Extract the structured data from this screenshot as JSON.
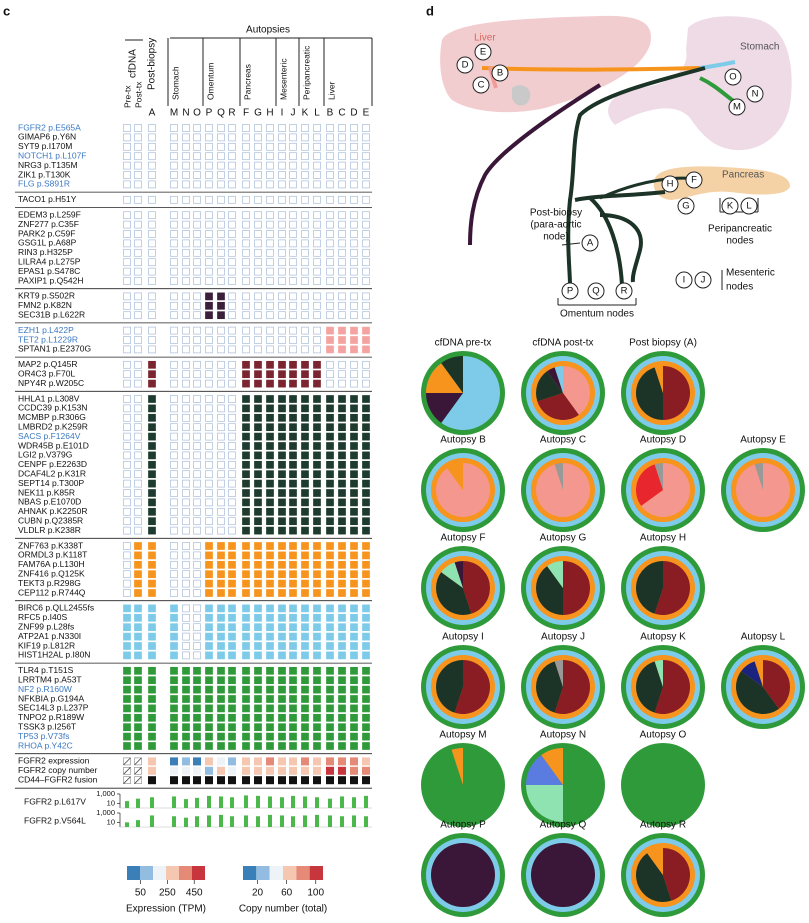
{
  "panel_c": {
    "label": "c",
    "headers": {
      "cfdna": "cfDNA",
      "post_biopsy": "Post-biopsy",
      "autopsies": "Autopsies"
    },
    "columns": [
      "Pre-tx",
      "Post-tx",
      "A",
      "M",
      "N",
      "O",
      "P",
      "Q",
      "R",
      "F",
      "G",
      "H",
      "I",
      "J",
      "K",
      "L",
      "B",
      "C",
      "D",
      "E"
    ],
    "sites": [
      {
        "name": "Stomach",
        "columns": [
          "M",
          "N",
          "O"
        ]
      },
      {
        "name": "Omentum",
        "columns": [
          "P",
          "Q",
          "R"
        ]
      },
      {
        "name": "Pancreas",
        "columns": [
          "F",
          "G",
          "H"
        ]
      },
      {
        "name": "Mesenteric",
        "columns": [
          "I",
          "J"
        ]
      },
      {
        "name": "Peripancreatic",
        "columns": [
          "K",
          "L"
        ]
      },
      {
        "name": "Liver",
        "columns": [
          "B",
          "C",
          "D",
          "E"
        ]
      }
    ],
    "highlight_color": "#3a78c2",
    "blocks": [
      {
        "genes": [
          "FGFR2 p.E565A",
          "GIMAP6 p.Y6N",
          "SYT9 p.I170M",
          "NOTCH1 p.L107F",
          "NRG3 p.T135M",
          "ZIK1 p.T130K",
          "FLG p.S891R"
        ],
        "highlighted": [
          0,
          3,
          6
        ],
        "color": null,
        "filled": []
      },
      {
        "genes": [
          "TACO1 p.H51Y"
        ],
        "highlighted": [],
        "color": null,
        "filled": []
      },
      {
        "genes": [
          "EDEM3 p.L259F",
          "ZNF277 p.C35F",
          "PARK2 p.C59F",
          "GSG1L p.A68P",
          "RIN3 p.H325P",
          "LILRA4 p.L275P",
          "EPAS1 p.S478C",
          "PAXIP1 p.Q542H"
        ],
        "highlighted": [],
        "color": null,
        "filled": []
      },
      {
        "genes": [
          "KRT9 p.S502R",
          "FMN2 p.K82N",
          "SEC31B p.L622R"
        ],
        "highlighted": [],
        "color": "#3b1f3b",
        "filled": [
          "P",
          "Q"
        ]
      },
      {
        "genes": [
          "EZH1 p.L422P",
          "TET2 p.L1229R",
          "SPTAN1 p.E2370G"
        ],
        "highlighted": [
          0,
          1
        ],
        "color": "#f4a3a0",
        "filled": [
          "B",
          "C",
          "D",
          "E"
        ]
      },
      {
        "genes": [
          "MAP2 p.Q145R",
          "OR4C3 p.F70L",
          "NPY4R p.W205C"
        ],
        "highlighted": [],
        "color": "#7a2530",
        "filled": [
          "A",
          "F",
          "G",
          "H",
          "I",
          "J",
          "K",
          "L"
        ]
      },
      {
        "genes": [
          "HHLA1 p.L308V",
          "CCDC39 p.K153N",
          "MCMBP p.R306G",
          "LMBRD2 p.K259R",
          "SACS p.F1264V",
          "WDR45B p.E101D",
          "LGI2 p.V379G",
          "CENPF p.E2263D",
          "DCAF4L2 p.K31R",
          "SEPT14 p.T300P",
          "NEK11 p.K85R",
          "NBAS p.E1070D",
          "AHNAK p.K2250R",
          "CUBN p.Q2385R",
          "VLDLR p.K238R"
        ],
        "highlighted": [
          4
        ],
        "color": "#1e3b2f",
        "filled": [
          "A",
          "F",
          "G",
          "H",
          "I",
          "J",
          "K",
          "L",
          "B",
          "C",
          "D",
          "E"
        ]
      },
      {
        "genes": [
          "ZNF763 p.K338T",
          "ORMDL3 p.K118T",
          "FAM76A p.L130H",
          "ZNF416 p.Q125K",
          "TEKT3 p.R298G",
          "CEP112 p.R744Q"
        ],
        "highlighted": [],
        "color": "#f7941d",
        "filled": [
          "Post-tx",
          "A",
          "P",
          "Q",
          "R",
          "F",
          "G",
          "H",
          "I",
          "J",
          "K",
          "L",
          "B",
          "C",
          "D",
          "E"
        ]
      },
      {
        "genes": [
          "BIRC6 p.QLL2455fs",
          "RFC5 p.I40S",
          "ZNF99 p.L28fs",
          "ATP2A1 p.N330I",
          "KIF19 p.L812R",
          "HIST1H2AL p.I80N"
        ],
        "highlighted": [],
        "color": "#7dcbe9",
        "filled": [
          "Pre-tx",
          "Post-tx",
          "A",
          "M",
          "P",
          "Q",
          "R",
          "F",
          "G",
          "H",
          "I",
          "J",
          "K",
          "L",
          "B",
          "C",
          "D",
          "E"
        ]
      },
      {
        "genes": [
          "TLR4 p.T151S",
          "LRRTM4 p.A53T",
          "NF2 p.R160W",
          "NFKBIA p.G194A",
          "SEC14L3 p.L237P",
          "TNPO2 p.R189W",
          "TSSK3 p.I256T",
          "TP53 p.V73fs",
          "RHOA p.Y42C"
        ],
        "highlighted": [
          2,
          7,
          8
        ],
        "color": "#2f9a3a",
        "filled": [
          "Pre-tx",
          "Post-tx",
          "A",
          "M",
          "N",
          "O",
          "P",
          "Q",
          "R",
          "F",
          "G",
          "H",
          "I",
          "J",
          "K",
          "L",
          "B",
          "C",
          "D",
          "E"
        ]
      }
    ],
    "fgfr2_rows": {
      "labels": [
        "FGFR2 expression",
        "FGFR2 copy number",
        "CD44–FGFR2 fusion"
      ],
      "expression": [
        null,
        null,
        300,
        30,
        80,
        40,
        250,
        200,
        60,
        300,
        320,
        350,
        300,
        280,
        350,
        300,
        400,
        420,
        380,
        300
      ],
      "copy_number": [
        null,
        null,
        60,
        50,
        50,
        40,
        30,
        55,
        45,
        60,
        65,
        70,
        60,
        65,
        70,
        60,
        100,
        95,
        90,
        85
      ],
      "fusion": [
        null,
        null,
        1,
        1,
        1,
        1,
        1,
        1,
        1,
        1,
        1,
        1,
        1,
        1,
        1,
        1,
        1,
        1,
        1,
        1
      ]
    },
    "vaf_rows": {
      "type": "bar",
      "log": true,
      "ylim": [
        1,
        1000
      ],
      "yticks": [
        {
          "value": 1000,
          "label": "1,000"
        },
        10
      ],
      "series": [
        {
          "name": "FGFR2 p.L617V",
          "color": "#4cb84c",
          "values": [
            30,
            100,
            200,
            300,
            80,
            150,
            400,
            300,
            200,
            500,
            400,
            300,
            200,
            400,
            300,
            200,
            100,
            300,
            200,
            400
          ]
        },
        {
          "name": "FGFR2 p.V564L",
          "color": "#4cb84c",
          "values": [
            10,
            30,
            300,
            200,
            100,
            200,
            300,
            400,
            200,
            300,
            200,
            400,
            300,
            200,
            300,
            400,
            300,
            200,
            300,
            200
          ]
        }
      ]
    },
    "legends": [
      {
        "title": "Expression (TPM)",
        "colors": [
          "#3a7fb8",
          "#93bde0",
          "#eef3f8",
          "#f6c7b0",
          "#e58a77",
          "#c8363d"
        ],
        "lim": [
          -50,
          530
        ],
        "ticks": [
          50,
          250,
          450
        ]
      },
      {
        "title": "Copy number (total)",
        "colors": [
          "#3a7fb8",
          "#93bde0",
          "#eef3f8",
          "#f6c7b0",
          "#e58a77",
          "#c8363d"
        ],
        "lim": [
          0,
          110
        ],
        "ticks": [
          20,
          60,
          100
        ]
      }
    ]
  },
  "panel_d": {
    "label": "d",
    "organs": [
      "Liver",
      "Stomach",
      "Pancreas"
    ],
    "nodes": [
      "D",
      "E",
      "C",
      "B",
      "O",
      "M",
      "N",
      "H",
      "F",
      "G",
      "K",
      "L",
      "A",
      "I",
      "J",
      "P",
      "Q",
      "R"
    ],
    "annotations": {
      "post_biopsy": [
        "Post-biopsy",
        "(para-aortic",
        "node)"
      ],
      "peripancreatic": [
        "Peripancreatic",
        "nodes"
      ],
      "mesenteric": [
        "Mesenteric",
        "nodes"
      ],
      "omentum": "Omentum nodes"
    },
    "pies": [
      {
        "title": "cfDNA pre-tx",
        "rings": [
          "#2f9a3a"
        ],
        "slices": [
          {
            "color": "#7dcbe9",
            "value": 60
          },
          {
            "color": "#3a1638",
            "value": 15
          },
          {
            "color": "#f7941d",
            "value": 15
          },
          {
            "color": "#1c3327",
            "value": 10
          }
        ]
      },
      {
        "title": "cfDNA post-tx",
        "rings": [
          "#2f9a3a",
          "#7dcbe9",
          "#f7941d"
        ],
        "slices": [
          {
            "color": "#f4978e",
            "value": 40
          },
          {
            "color": "#8a1c24",
            "value": 30
          },
          {
            "color": "#1c3327",
            "value": 20
          },
          {
            "color": "#3a1638",
            "value": 5
          },
          {
            "color": "#7dcbe9",
            "value": 5
          }
        ]
      },
      {
        "title": "Post biopsy (A)",
        "rings": [
          "#2f9a3a",
          "#7dcbe9",
          "#f7941d"
        ],
        "slices": [
          {
            "color": "#8a1c24",
            "value": 50
          },
          {
            "color": "#1c3327",
            "value": 45
          },
          {
            "color": "#f7941d",
            "value": 5
          }
        ]
      },
      {
        "title": "Autopsy B",
        "rings": [
          "#2f9a3a",
          "#7dcbe9",
          "#f7941d"
        ],
        "slices": [
          {
            "color": "#f4978e",
            "value": 90
          },
          {
            "color": "#f7941d",
            "value": 10
          }
        ]
      },
      {
        "title": "Autopsy C",
        "rings": [
          "#2f9a3a",
          "#7dcbe9",
          "#f7941d"
        ],
        "slices": [
          {
            "color": "#f4978e",
            "value": 95
          },
          {
            "color": "#999999",
            "value": 5
          }
        ]
      },
      {
        "title": "Autopsy D",
        "rings": [
          "#2f9a3a",
          "#7dcbe9",
          "#f7941d"
        ],
        "slices": [
          {
            "color": "#f4978e",
            "value": 65
          },
          {
            "color": "#e8262d",
            "value": 30
          },
          {
            "color": "#999999",
            "value": 5
          }
        ]
      },
      {
        "title": "Autopsy E",
        "rings": [
          "#2f9a3a",
          "#7dcbe9",
          "#f7941d"
        ],
        "slices": [
          {
            "color": "#f4978e",
            "value": 95
          },
          {
            "color": "#999999",
            "value": 5
          }
        ]
      },
      {
        "title": "Autopsy F",
        "rings": [
          "#2f9a3a",
          "#7dcbe9",
          "#f7941d"
        ],
        "slices": [
          {
            "color": "#8a1c24",
            "value": 45
          },
          {
            "color": "#1c3327",
            "value": 40
          },
          {
            "color": "#8fe3b0",
            "value": 10
          },
          {
            "color": "#3a1638",
            "value": 5
          }
        ]
      },
      {
        "title": "Autopsy G",
        "rings": [
          "#2f9a3a",
          "#7dcbe9",
          "#f7941d"
        ],
        "slices": [
          {
            "color": "#8a1c24",
            "value": 50
          },
          {
            "color": "#1c3327",
            "value": 40
          },
          {
            "color": "#8fe3b0",
            "value": 10
          }
        ]
      },
      {
        "title": "Autopsy H",
        "rings": [
          "#2f9a3a",
          "#7dcbe9",
          "#f7941d"
        ],
        "slices": [
          {
            "color": "#8a1c24",
            "value": 55
          },
          {
            "color": "#1c3327",
            "value": 45
          }
        ]
      },
      {
        "title": "Autopsy I",
        "rings": [
          "#2f9a3a",
          "#7dcbe9",
          "#f7941d"
        ],
        "slices": [
          {
            "color": "#8a1c24",
            "value": 55
          },
          {
            "color": "#1c3327",
            "value": 45
          }
        ]
      },
      {
        "title": "Autopsy J",
        "rings": [
          "#2f9a3a",
          "#7dcbe9",
          "#f7941d"
        ],
        "slices": [
          {
            "color": "#8a1c24",
            "value": 55
          },
          {
            "color": "#1c3327",
            "value": 40
          },
          {
            "color": "#999999",
            "value": 5
          }
        ]
      },
      {
        "title": "Autopsy K",
        "rings": [
          "#2f9a3a",
          "#7dcbe9",
          "#f7941d"
        ],
        "slices": [
          {
            "color": "#8a1c24",
            "value": 55
          },
          {
            "color": "#1c3327",
            "value": 40
          },
          {
            "color": "#8fe3b0",
            "value": 5
          }
        ]
      },
      {
        "title": "Autopsy L",
        "rings": [
          "#2f9a3a",
          "#7dcbe9",
          "#f7941d"
        ],
        "slices": [
          {
            "color": "#8a1c24",
            "value": 40
          },
          {
            "color": "#1c3327",
            "value": 45
          },
          {
            "color": "#1a237e",
            "value": 10
          },
          {
            "color": "#f7941d",
            "value": 5
          }
        ]
      },
      {
        "title": "Autopsy M",
        "rings": [
          "#2f9a3a"
        ],
        "slices": [
          {
            "color": "#2f9a3a",
            "value": 95
          },
          {
            "color": "#f7941d",
            "value": 5
          }
        ]
      },
      {
        "title": "Autopsy N",
        "rings": [
          "#2f9a3a"
        ],
        "slices": [
          {
            "color": "#2f9a3a",
            "value": 50
          },
          {
            "color": "#8fe3b0",
            "value": 25
          },
          {
            "color": "#5a7be0",
            "value": 15
          },
          {
            "color": "#f7941d",
            "value": 10
          }
        ]
      },
      {
        "title": "Autopsy O",
        "rings": [
          "#2f9a3a"
        ],
        "slices": [
          {
            "color": "#2f9a3a",
            "value": 100
          }
        ]
      },
      {
        "title": "Autopsy P",
        "rings": [
          "#2f9a3a",
          "#7dcbe9"
        ],
        "slices": [
          {
            "color": "#3a1638",
            "value": 100
          }
        ]
      },
      {
        "title": "Autopsy Q",
        "rings": [
          "#2f9a3a",
          "#7dcbe9"
        ],
        "slices": [
          {
            "color": "#3a1638",
            "value": 100
          }
        ]
      },
      {
        "title": "Autopsy R",
        "rings": [
          "#2f9a3a",
          "#7dcbe9",
          "#f7941d"
        ],
        "slices": [
          {
            "color": "#8a1c24",
            "value": 45
          },
          {
            "color": "#1c3327",
            "value": 45
          },
          {
            "color": "#f7941d",
            "value": 10
          }
        ]
      }
    ]
  }
}
